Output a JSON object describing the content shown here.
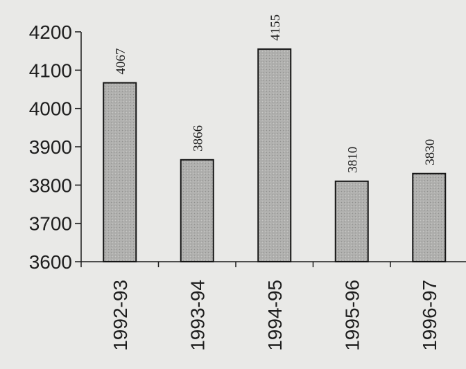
{
  "chart_data": {
    "type": "bar",
    "categories": [
      "1992-93",
      "1993-94",
      "1994-95",
      "1995-96",
      "1996-97"
    ],
    "values": [
      4067,
      3866,
      4155,
      3810,
      3830
    ],
    "data_labels": [
      "4067",
      "3866",
      "4155",
      "3810",
      "3830"
    ],
    "y_ticks": [
      "4200",
      "4100",
      "4000",
      "3900",
      "3800",
      "3700",
      "3600"
    ],
    "ylim": [
      3600,
      4200
    ],
    "title": "",
    "xlabel": "",
    "ylabel": "",
    "grid": false,
    "legend": "none",
    "bar_color": "#b0b0ae",
    "bar_outline": "#151515",
    "background": "#e9e9e7"
  }
}
